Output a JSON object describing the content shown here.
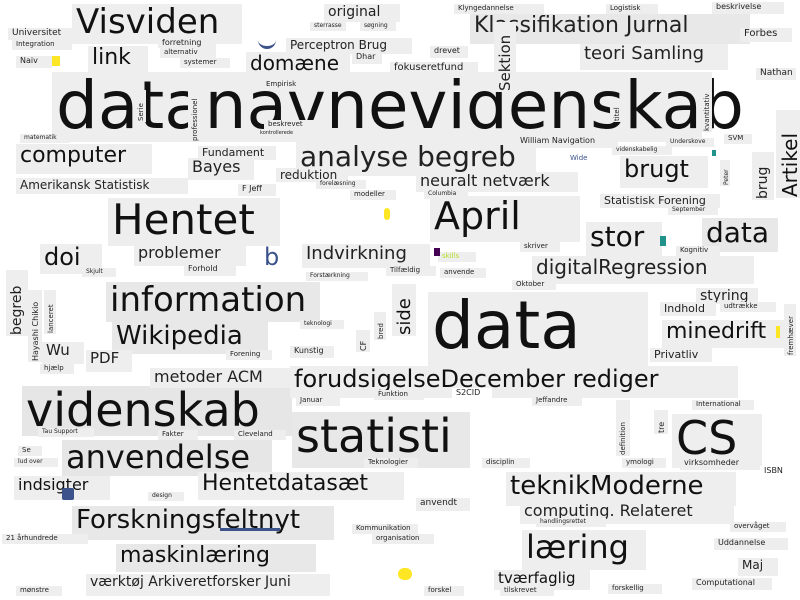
{
  "words": [
    {
      "text": "datanavnevidenskab",
      "color": "#111111",
      "bg": "#eeeeee",
      "weight": 100
    },
    {
      "text": "data",
      "color": "#111111",
      "bg": "#eeeeee",
      "weight": 80
    },
    {
      "text": "statisti",
      "color": "#111111",
      "bg": "#e8e8e8",
      "weight": 60
    },
    {
      "text": "videnskab",
      "color": "#111111",
      "bg": "#e6e6e6",
      "weight": 60
    },
    {
      "text": "CS",
      "color": "#111111",
      "bg": "#eeeeee",
      "weight": 55
    },
    {
      "text": "Hentet",
      "color": "#111111",
      "bg": "#eeeeee",
      "weight": 45
    },
    {
      "text": "April",
      "color": "#111111",
      "bg": "#eeeeee",
      "weight": 42
    },
    {
      "text": "Visviden",
      "color": "#111111",
      "bg": "#eeeeee",
      "weight": 38
    },
    {
      "text": "information",
      "color": "#111111",
      "bg": "#e8e8e8",
      "weight": 36
    },
    {
      "text": "anvendelse",
      "color": "#111111",
      "bg": "#e6e6e6",
      "weight": 34
    },
    {
      "text": "data",
      "color": "#111111",
      "bg": "#e8e8e8",
      "weight": 32
    },
    {
      "text": "læring",
      "color": "#111111",
      "bg": "#eeeeee",
      "weight": 32
    },
    {
      "text": "analyse begreb",
      "color": "#222222",
      "bg": "#eeeeee",
      "weight": 30
    },
    {
      "text": "Forskningsfeltnyt",
      "color": "#111111",
      "bg": "#e8e8e8",
      "weight": 30
    },
    {
      "text": "Wikipedia",
      "color": "#111111",
      "bg": "#e8e8e8",
      "weight": 30
    },
    {
      "text": "teknikModerne",
      "color": "#111111",
      "bg": "#eeeeee",
      "weight": 30
    },
    {
      "text": "stor",
      "color": "#111111",
      "bg": "#eeeeee",
      "weight": 30
    },
    {
      "text": "forudsigelseDecember rediger",
      "color": "#111111",
      "bg": "#eeeeee",
      "weight": 28
    },
    {
      "text": "Klassifikation Jurnal",
      "color": "#222222",
      "bg": "#e8e8e8",
      "weight": 26
    },
    {
      "text": "brugt",
      "color": "#111111",
      "bg": "#eeeeee",
      "weight": 26
    },
    {
      "text": "computer",
      "color": "#111111",
      "bg": "#eeeeee",
      "weight": 24
    },
    {
      "text": "doi",
      "color": "#111111",
      "bg": "#eeeeee",
      "weight": 26
    },
    {
      "text": "Hentetdatasæt",
      "color": "#111111",
      "bg": "#eeeeee",
      "weight": 24
    },
    {
      "text": "maskinlæring",
      "color": "#111111",
      "bg": "#e8e8e8",
      "weight": 24
    },
    {
      "text": "digitalRegression",
      "color": "#222222",
      "bg": "#eeeeee",
      "weight": 22
    },
    {
      "text": "minedrift",
      "color": "#111111",
      "bg": "#eeeeee",
      "weight": 22
    },
    {
      "text": "link",
      "color": "#111111",
      "bg": "#eeeeee",
      "weight": 22
    },
    {
      "text": "domæne",
      "color": "#111111",
      "bg": "#eeeeee",
      "weight": 20
    },
    {
      "text": "teori Samling",
      "color": "#222222",
      "bg": "#eeeeee",
      "weight": 20
    },
    {
      "text": "Artikel",
      "color": "#111111",
      "bg": "#eeeeee",
      "weight": 20
    },
    {
      "text": "Indvirkning",
      "color": "#222222",
      "bg": "#eeeeee",
      "weight": 18
    },
    {
      "text": "problemer",
      "color": "#222222",
      "bg": "#eeeeee",
      "weight": 16
    },
    {
      "text": "Bayes",
      "color": "#222222",
      "bg": "#eeeeee",
      "weight": 16
    },
    {
      "text": "indsigter",
      "color": "#111111",
      "bg": "#eeeeee",
      "weight": 16
    },
    {
      "text": "side",
      "color": "#111111",
      "bg": "#eeeeee",
      "weight": 18
    },
    {
      "text": "neuralt netværk",
      "color": "#222222",
      "bg": "#eeeeee",
      "weight": 16
    },
    {
      "text": "computing. Relateret",
      "color": "#222222",
      "bg": "#eeeeee",
      "weight": 16
    },
    {
      "text": "tværfaglig",
      "color": "#111111",
      "bg": "#eeeeee",
      "weight": 16
    },
    {
      "text": "værktøj Arkiveretforsker Juni",
      "color": "#222222",
      "bg": "#eeeeee",
      "weight": 15
    },
    {
      "text": "metoder ACM",
      "color": "#222222",
      "bg": "#eeeeee",
      "weight": 16
    },
    {
      "text": "PDF",
      "color": "#222222",
      "bg": "#eeeeee",
      "weight": 16
    },
    {
      "text": "Wu",
      "color": "#222222",
      "bg": "#eeeeee",
      "weight": 16
    },
    {
      "text": "Sektion",
      "color": "#222222",
      "bg": "#eeeeee",
      "weight": 16
    },
    {
      "text": "b",
      "color": "#3b528b",
      "bg": "#eeeeee",
      "weight": 22
    },
    {
      "text": "brug",
      "color": "#222222",
      "bg": "#eeeeee",
      "weight": 15
    },
    {
      "text": "begreb",
      "color": "#222222",
      "bg": "#eeeeee",
      "weight": 15
    },
    {
      "text": "styring",
      "color": "#222222",
      "bg": "#eeeeee",
      "weight": 14
    },
    {
      "text": "original",
      "color": "#222222",
      "bg": "#eeeeee",
      "weight": 14
    },
    {
      "text": "Perceptron Brug",
      "color": "#222222",
      "bg": "#eeeeee",
      "weight": 12
    },
    {
      "text": "Amerikansk Statistisk",
      "color": "#222222",
      "bg": "#eeeeee",
      "weight": 12
    },
    {
      "text": "fokuseretfund",
      "color": "#222222",
      "bg": "#eeeeee",
      "weight": 10
    },
    {
      "text": "Statistisk Forening",
      "color": "#222222",
      "bg": "#eeeeee",
      "weight": 11
    },
    {
      "text": "reduktion",
      "color": "#222222",
      "bg": "#eeeeee",
      "weight": 12
    },
    {
      "text": "Fundament",
      "color": "#222222",
      "bg": "#eeeeee",
      "weight": 11
    },
    {
      "text": "Privatliv",
      "color": "#222222",
      "bg": "#eeeeee",
      "weight": 11
    },
    {
      "text": "Indhold",
      "color": "#222222",
      "bg": "#eeeeee",
      "weight": 11
    },
    {
      "text": "Maj",
      "color": "#222222",
      "bg": "#eeeeee",
      "weight": 12
    },
    {
      "text": "Nathan",
      "color": "#222222",
      "bg": "#eeeeee",
      "weight": 9
    },
    {
      "text": "Forbes",
      "color": "#222222",
      "bg": "#eeeeee",
      "weight": 10
    },
    {
      "text": "Universitet",
      "color": "#222222",
      "bg": "#eeeeee",
      "weight": 9
    },
    {
      "text": "Integration",
      "color": "#222222",
      "bg": "#eeeeee",
      "weight": 7
    },
    {
      "text": "Naiv",
      "color": "#222222",
      "bg": "#eeeeee",
      "weight": 8
    },
    {
      "text": "forretning",
      "color": "#222222",
      "bg": "#eeeeee",
      "weight": 8
    },
    {
      "text": "alternativ",
      "color": "#222222",
      "bg": "#eeeeee",
      "weight": 7
    },
    {
      "text": "systemer",
      "color": "#222222",
      "bg": "#eeeeee",
      "weight": 7
    },
    {
      "text": "Dhar",
      "color": "#222222",
      "bg": "#eeeeee",
      "weight": 8
    },
    {
      "text": "drevet",
      "color": "#222222",
      "bg": "#eeeeee",
      "weight": 8
    },
    {
      "text": "Klyngedannelse",
      "color": "#222222",
      "bg": "#eeeeee",
      "weight": 7
    },
    {
      "text": "Logistisk",
      "color": "#222222",
      "bg": "#eeeeee",
      "weight": 7
    },
    {
      "text": "beskrivelse",
      "color": "#222222",
      "bg": "#eeeeee",
      "weight": 8
    },
    {
      "text": "sterrasse",
      "color": "#222222",
      "bg": "#eeeeee",
      "weight": 6
    },
    {
      "text": "søgning",
      "color": "#222222",
      "bg": "#eeeeee",
      "weight": 6
    },
    {
      "text": "Empirisk",
      "color": "#222222",
      "bg": "#eeeeee",
      "weight": 7
    },
    {
      "text": "beskrevet",
      "color": "#222222",
      "bg": "#eeeeee",
      "weight": 7
    },
    {
      "text": "William Navigation",
      "color": "#222222",
      "bg": "#eeeeee",
      "weight": 8
    },
    {
      "text": "videnskabelig",
      "color": "#222222",
      "bg": "#eeeeee",
      "weight": 6
    },
    {
      "text": "Wide",
      "color": "#3b528b",
      "bg": "#ffffff",
      "weight": 7
    },
    {
      "text": "SVM",
      "color": "#222222",
      "bg": "#eeeeee",
      "weight": 7
    },
    {
      "text": "F Jeff",
      "color": "#222222",
      "bg": "#eeeeee",
      "weight": 8
    },
    {
      "text": "modeller",
      "color": "#222222",
      "bg": "#eeeeee",
      "weight": 7
    },
    {
      "text": "forelæsning",
      "color": "#222222",
      "bg": "#eeeeee",
      "weight": 6
    },
    {
      "text": "Columbia",
      "color": "#222222",
      "bg": "#eeeeee",
      "weight": 6
    },
    {
      "text": "skriver",
      "color": "#222222",
      "bg": "#eeeeee",
      "weight": 7
    },
    {
      "text": "skills",
      "color": "#b5de2b",
      "bg": "#eeeeee",
      "weight": 7
    },
    {
      "text": "Kognitiv",
      "color": "#222222",
      "bg": "#eeeeee",
      "weight": 7
    },
    {
      "text": "Forhold",
      "color": "#222222",
      "bg": "#eeeeee",
      "weight": 8
    },
    {
      "text": "Skjult",
      "color": "#222222",
      "bg": "#eeeeee",
      "weight": 6
    },
    {
      "text": "Forstærkning",
      "color": "#222222",
      "bg": "#eeeeee",
      "weight": 6
    },
    {
      "text": "Tilfældig",
      "color": "#222222",
      "bg": "#eeeeee",
      "weight": 7
    },
    {
      "text": "anvende",
      "color": "#222222",
      "bg": "#eeeeee",
      "weight": 7
    },
    {
      "text": "Oktober",
      "color": "#222222",
      "bg": "#eeeeee",
      "weight": 7
    },
    {
      "text": "udtrække",
      "color": "#222222",
      "bg": "#eeeeee",
      "weight": 7
    },
    {
      "text": "fremhæver",
      "color": "#222222",
      "bg": "#eeeeee",
      "weight": 7
    },
    {
      "text": "Hayashi Chikio",
      "color": "#222222",
      "bg": "#eeeeee",
      "weight": 8
    },
    {
      "text": "lanceret",
      "color": "#222222",
      "bg": "#eeeeee",
      "weight": 7
    },
    {
      "text": "hjælp",
      "color": "#222222",
      "bg": "#eeeeee",
      "weight": 7
    },
    {
      "text": "Forening",
      "color": "#222222",
      "bg": "#eeeeee",
      "weight": 7
    },
    {
      "text": "Kunstig",
      "color": "#222222",
      "bg": "#eeeeee",
      "weight": 8
    },
    {
      "text": "CF",
      "color": "#222222",
      "bg": "#eeeeee",
      "weight": 8
    },
    {
      "text": "bred",
      "color": "#222222",
      "bg": "#eeeeee",
      "weight": 7
    },
    {
      "text": "teknologi",
      "color": "#222222",
      "bg": "#eeeeee",
      "weight": 6
    },
    {
      "text": "Januar",
      "color": "#222222",
      "bg": "#eeeeee",
      "weight": 7
    },
    {
      "text": "Funktion",
      "color": "#222222",
      "bg": "#eeeeee",
      "weight": 7
    },
    {
      "text": "S2CID",
      "color": "#222222",
      "bg": "#ffffff",
      "weight": 8
    },
    {
      "text": "Jeffandre",
      "color": "#222222",
      "bg": "#eeeeee",
      "weight": 7
    },
    {
      "text": "International",
      "color": "#222222",
      "bg": "#eeeeee",
      "weight": 7
    },
    {
      "text": "definition",
      "color": "#222222",
      "bg": "#eeeeee",
      "weight": 7
    },
    {
      "text": "tre",
      "color": "#222222",
      "bg": "#eeeeee",
      "weight": 8
    },
    {
      "text": "Fakter",
      "color": "#222222",
      "bg": "#eeeeee",
      "weight": 7
    },
    {
      "text": "Cleveland",
      "color": "#222222",
      "bg": "#eeeeee",
      "weight": 7
    },
    {
      "text": "Teknologier",
      "color": "#222222",
      "bg": "#eeeeee",
      "weight": 7
    },
    {
      "text": "disciplin",
      "color": "#222222",
      "bg": "#eeeeee",
      "weight": 7
    },
    {
      "text": "ymologi",
      "color": "#222222",
      "bg": "#eeeeee",
      "weight": 7
    },
    {
      "text": "virksomheder",
      "color": "#222222",
      "bg": "#eeeeee",
      "weight": 8
    },
    {
      "text": "ISBN",
      "color": "#222222",
      "bg": "#ffffff",
      "weight": 8
    },
    {
      "text": "design",
      "color": "#222222",
      "bg": "#eeeeee",
      "weight": 6
    },
    {
      "text": "anvendt",
      "color": "#222222",
      "bg": "#eeeeee",
      "weight": 9
    },
    {
      "text": "handlingsrettet",
      "color": "#222222",
      "bg": "#eeeeee",
      "weight": 6
    },
    {
      "text": "overvåget",
      "color": "#222222",
      "bg": "#eeeeee",
      "weight": 7
    },
    {
      "text": "Kommunikation",
      "color": "#222222",
      "bg": "#eeeeee",
      "weight": 7
    },
    {
      "text": "organisation",
      "color": "#222222",
      "bg": "#eeeeee",
      "weight": 7
    },
    {
      "text": "Uddannelse",
      "color": "#222222",
      "bg": "#eeeeee",
      "weight": 8
    },
    {
      "text": "21 århundrede",
      "color": "#222222",
      "bg": "#eeeeee",
      "weight": 7
    },
    {
      "text": "mønstre",
      "color": "#222222",
      "bg": "#eeeeee",
      "weight": 7
    },
    {
      "text": "forskel",
      "color": "#222222",
      "bg": "#eeeeee",
      "weight": 7
    },
    {
      "text": "tilskrevet",
      "color": "#222222",
      "bg": "#eeeeee",
      "weight": 7
    },
    {
      "text": "forskellig",
      "color": "#222222",
      "bg": "#eeeeee",
      "weight": 7
    },
    {
      "text": "Computational",
      "color": "#222222",
      "bg": "#eeeeee",
      "weight": 8
    },
    {
      "text": "Serie",
      "color": "#222222",
      "bg": "#eeeeee",
      "weight": 7
    },
    {
      "text": "professionel",
      "color": "#222222",
      "bg": "#eeeeee",
      "weight": 7
    },
    {
      "text": "titel",
      "color": "#222222",
      "bg": "#eeeeee",
      "weight": 7
    },
    {
      "text": "kvantitativ",
      "color": "#222222",
      "bg": "#eeeeee",
      "weight": 7
    },
    {
      "text": "Peter",
      "color": "#222222",
      "bg": "#eeeeee",
      "weight": 6
    },
    {
      "text": "September",
      "color": "#222222",
      "bg": "#eeeeee",
      "weight": 6
    },
    {
      "text": "matematik",
      "color": "#222222",
      "bg": "#eeeeee",
      "weight": 6
    },
    {
      "text": "Tau Support",
      "color": "#222222",
      "bg": "#eeeeee",
      "weight": 6
    },
    {
      "text": "Se",
      "color": "#222222",
      "bg": "#eeeeee",
      "weight": 7
    },
    {
      "text": "lud over",
      "color": "#222222",
      "bg": "#eeeeee",
      "weight": 6
    },
    {
      "text": "Underskove",
      "color": "#222222",
      "bg": "#eeeeee",
      "weight": 6
    },
    {
      "text": "kontrollerede",
      "color": "#222222",
      "bg": "#eeeeee",
      "weight": 5
    }
  ]
}
